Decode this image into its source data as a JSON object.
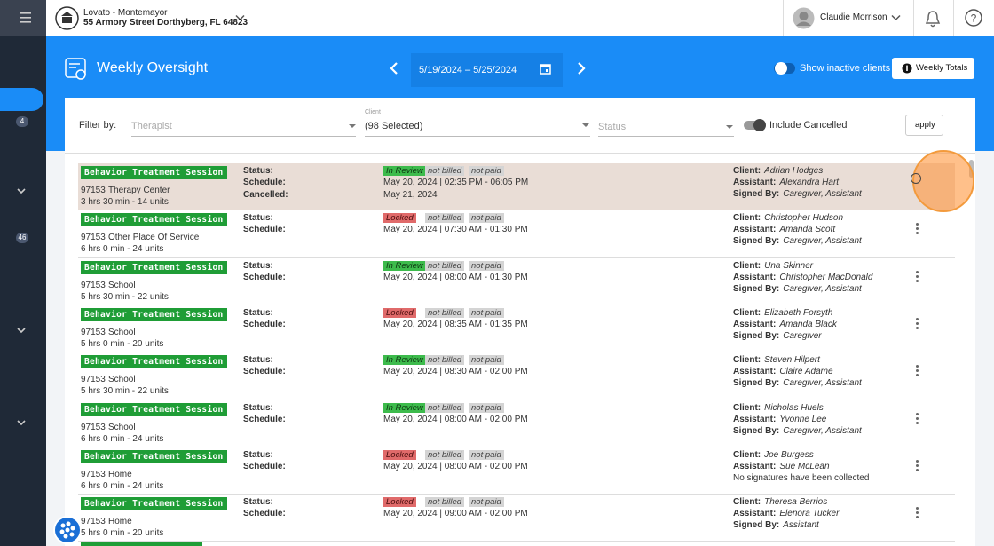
{
  "sidebar": {
    "badges": [
      4,
      46
    ]
  },
  "header": {
    "org_name": "Lovato - Montemayor",
    "address": "55 Armory Street Dorthyberg, FL 64823",
    "user_name": "Claudie Morrison"
  },
  "toolbar": {
    "title": "Weekly Oversight",
    "date_range": "5/19/2024 – 5/25/2024",
    "inactive_toggle": "Show inactive clients",
    "totals_button": "Weekly Totals"
  },
  "filters": {
    "label": "Filter by:",
    "therapist": "Therapist",
    "client_label": "Client",
    "client_value": "(98 Selected)",
    "status": "Status",
    "cancelled_toggle": "Include Cancelled",
    "apply": "apply"
  },
  "labels": {
    "status": "Status:",
    "schedule": "Schedule:",
    "cancelled": "Cancelled:",
    "client": "Client:",
    "assistant": "Assistant:",
    "signed_by": "Signed By:"
  },
  "sessions": [
    {
      "type": "Behavior Treatment Session",
      "code": "97153",
      "place": "Therapy Center",
      "duration": "3 hrs 30 min - 14 units",
      "status": "In Review",
      "billing": "not billed",
      "payment": "not paid",
      "schedule": "May 20, 2024  | 02:35 PM - 06:05 PM",
      "cancelled": "May 21, 2024",
      "client": "Adrian Hodges",
      "assistant": "Alexandra Hart",
      "signed_by": "Caregiver, Assistant"
    },
    {
      "type": "Behavior Treatment Session",
      "code": "97153",
      "place": "Other Place Of Service",
      "duration": "6 hrs 0 min - 24 units",
      "status": "Locked",
      "billing": "not billed",
      "payment": "not paid",
      "schedule": "May 20, 2024  | 07:30 AM - 01:30 PM",
      "client": "Christopher Hudson",
      "assistant": "Amanda Scott",
      "signed_by": "Caregiver, Assistant"
    },
    {
      "type": "Behavior Treatment Session",
      "code": "97153",
      "place": "School",
      "duration": "5 hrs 30 min - 22 units",
      "status": "In Review",
      "billing": "not billed",
      "payment": "not paid",
      "schedule": "May 20, 2024  | 08:00 AM - 01:30 PM",
      "client": "Una Skinner",
      "assistant": "Christopher MacDonald",
      "signed_by": "Caregiver, Assistant"
    },
    {
      "type": "Behavior Treatment Session",
      "code": "97153",
      "place": "School",
      "duration": "5 hrs 0 min - 20 units",
      "status": "Locked",
      "billing": "not billed",
      "payment": "not paid",
      "schedule": "May 20, 2024  | 08:35 AM - 01:35 PM",
      "client": "Elizabeth Forsyth",
      "assistant": "Amanda Black",
      "signed_by": "Caregiver"
    },
    {
      "type": "Behavior Treatment Session",
      "code": "97153",
      "place": "School",
      "duration": "5 hrs 30 min - 22 units",
      "status": "In Review",
      "billing": "not billed",
      "payment": "not paid",
      "schedule": "May 20, 2024  | 08:30 AM - 02:00 PM",
      "client": "Steven Hilpert",
      "assistant": "Claire Adame",
      "signed_by": "Caregiver, Assistant"
    },
    {
      "type": "Behavior Treatment Session",
      "code": "97153",
      "place": "School",
      "duration": "6 hrs 0 min - 24 units",
      "status": "In Review",
      "billing": "not billed",
      "payment": "not paid",
      "schedule": "May 20, 2024  | 08:00 AM - 02:00 PM",
      "client": "Nicholas Huels",
      "assistant": "Yvonne Lee",
      "signed_by": "Caregiver, Assistant"
    },
    {
      "type": "Behavior Treatment Session",
      "code": "97153",
      "place": "Home",
      "duration": "6 hrs 0 min - 24 units",
      "status": "Locked",
      "billing": "not billed",
      "payment": "not paid",
      "schedule": "May 20, 2024  | 08:00 AM - 02:00 PM",
      "client": "Joe Burgess",
      "assistant": "Sue McLean",
      "signatures_note": "No signatures have been collected"
    },
    {
      "type": "Behavior Treatment Session",
      "code": "97153",
      "place": "Home",
      "duration": "5 hrs 0 min - 20 units",
      "status": "Locked",
      "billing": "not billed",
      "payment": "not paid",
      "schedule": "May 20, 2024  | 09:00 AM - 02:00 PM",
      "client": "Theresa Berrios",
      "assistant": "Elenora Tucker",
      "signed_by": "Assistant"
    }
  ]
}
